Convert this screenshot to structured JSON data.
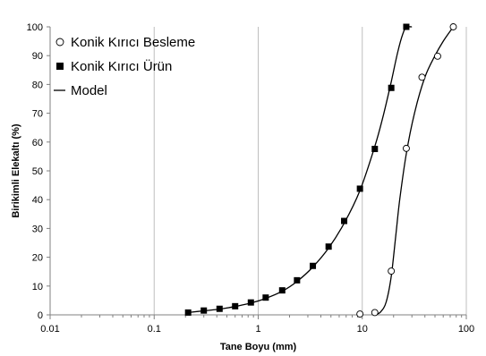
{
  "chart_data": {
    "type": "scatter",
    "xlabel": "Tane Boyu (mm)",
    "ylabel": "Birikimli Elekaltı (%)",
    "x_scale": "log",
    "xlim": [
      0.01,
      100
    ],
    "ylim": [
      0,
      100
    ],
    "x_ticks": [
      0.01,
      0.1,
      1,
      10,
      100
    ],
    "x_tick_labels": [
      "0.01",
      "0.1",
      "1",
      "10",
      "100"
    ],
    "y_ticks": [
      0,
      10,
      20,
      30,
      40,
      50,
      60,
      70,
      80,
      90,
      100
    ],
    "y_tick_labels": [
      "0",
      "10",
      "20",
      "30",
      "40",
      "50",
      "60",
      "70",
      "80",
      "90",
      "100"
    ],
    "grid": "vertical-major",
    "legend": "top-left",
    "series": [
      {
        "name": "Konik Kırıcı Besleme",
        "marker": "open-circle",
        "color": "#000000",
        "x": [
          9.5,
          13.2,
          19,
          26.5,
          37.5,
          53,
          75
        ],
        "y": [
          0.3,
          0.8,
          15.2,
          57.8,
          82.5,
          89.8,
          100
        ]
      },
      {
        "name": "Konik Kırıcı Ürün",
        "marker": "filled-square",
        "color": "#000000",
        "x": [
          0.212,
          0.3,
          0.425,
          0.6,
          0.85,
          1.18,
          1.7,
          2.36,
          3.35,
          4.75,
          6.7,
          9.5,
          13.2,
          19,
          26.5
        ],
        "y": [
          0.8,
          1.5,
          2.1,
          3.0,
          4.3,
          6.0,
          8.5,
          12.0,
          17.0,
          23.7,
          32.6,
          43.8,
          57.6,
          78.8,
          100
        ]
      },
      {
        "name": "Model",
        "marker": "line",
        "color": "#000000",
        "curves": [
          {
            "x": [
              0.212,
              0.3,
              0.425,
              0.6,
              0.85,
              1.18,
              1.7,
              2.36,
              3.35,
              4.75,
              6.7,
              9.5,
              13.2,
              16,
              19,
              22,
              24.5,
              26.5,
              30
            ],
            "y": [
              0.8,
              1.4,
              2.0,
              2.9,
              4.1,
              5.7,
              8.2,
              11.6,
              16.6,
              23.2,
              31.8,
              43.2,
              58.5,
              69.5,
              81,
              91.5,
              97.5,
              99.8,
              100
            ]
          },
          {
            "x": [
              13.2,
              15,
              17,
              19,
              21,
              23,
              26.5,
              32,
              40,
              50,
              60,
              75
            ],
            "y": [
              0,
              1.0,
              4.5,
              13.5,
              27.5,
              40.5,
              56,
              70.5,
              82.5,
              90,
              95,
              100
            ]
          }
        ]
      }
    ]
  }
}
